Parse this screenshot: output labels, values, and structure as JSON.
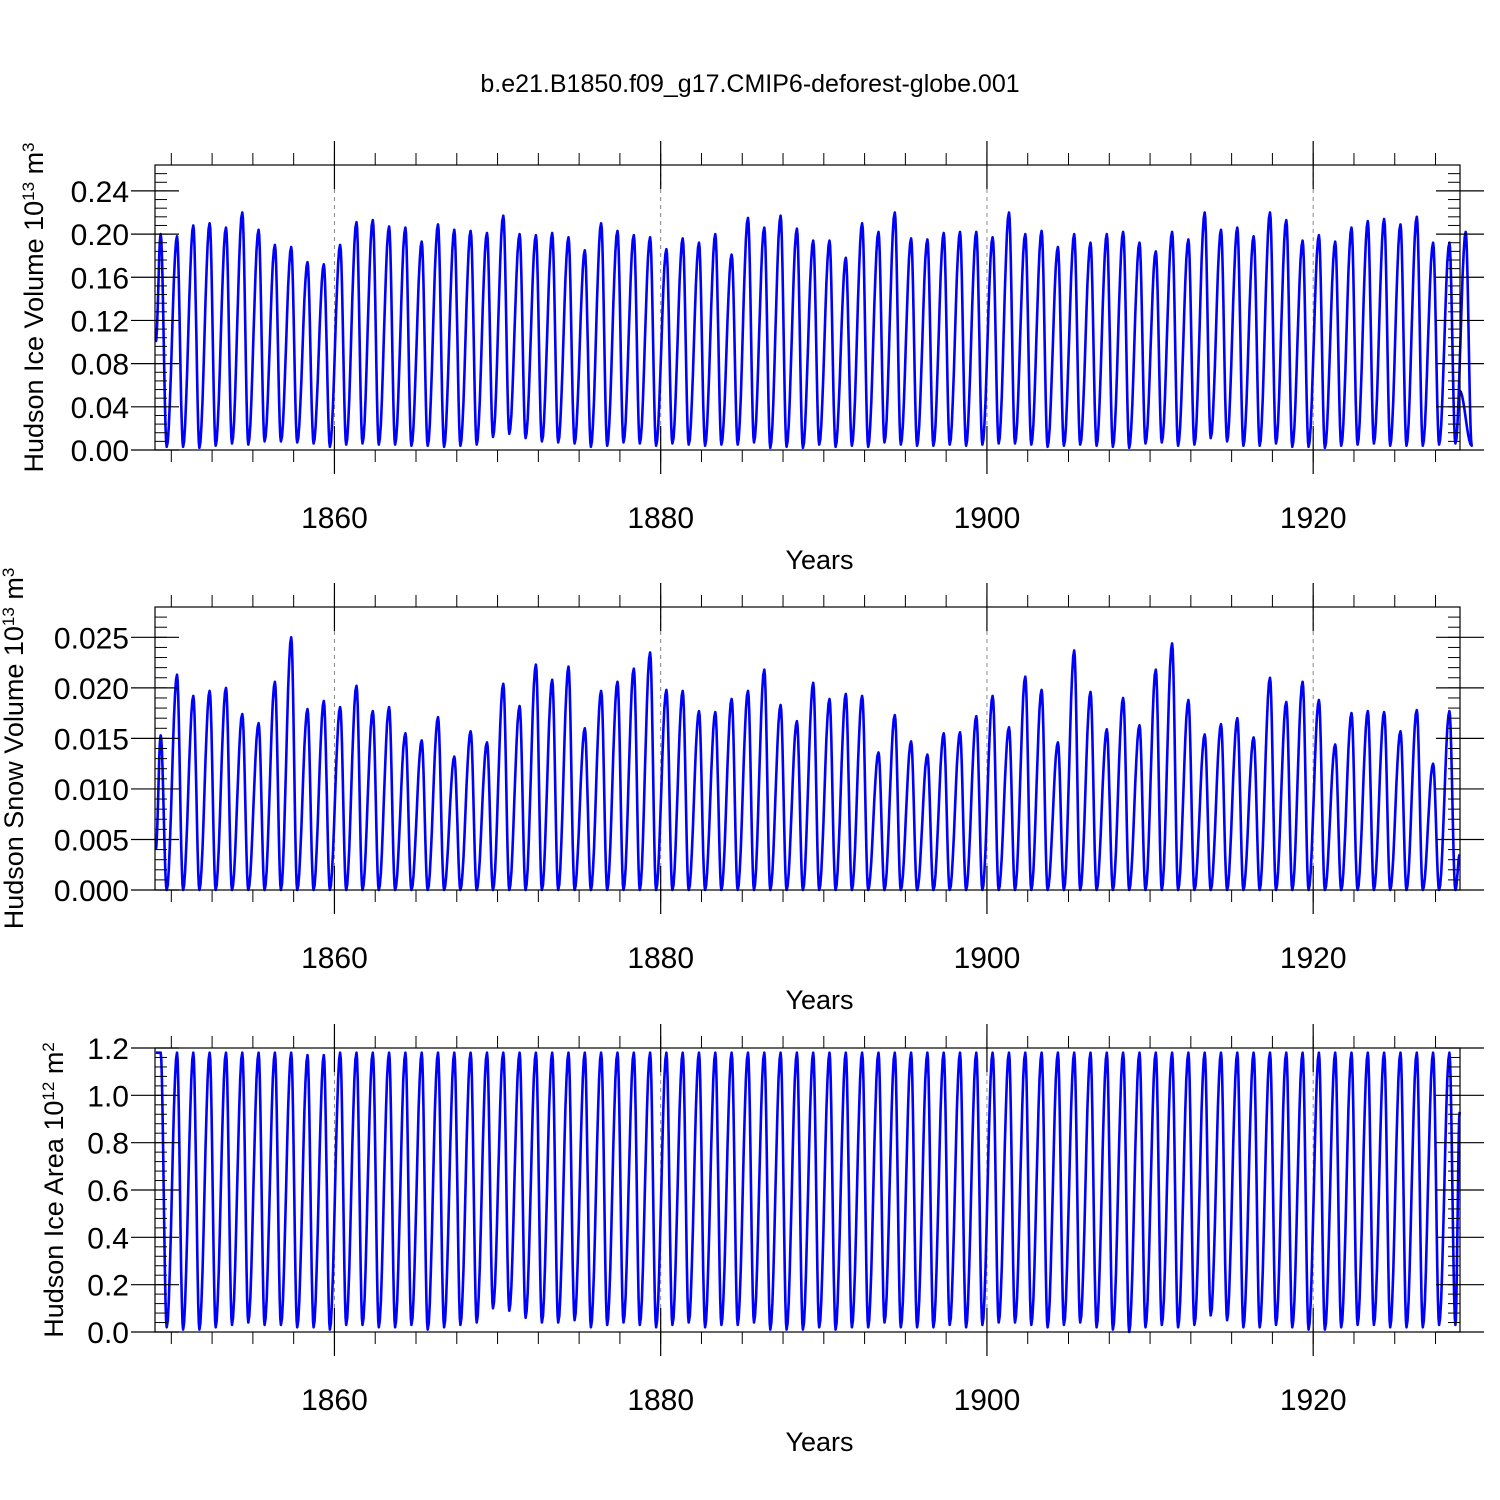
{
  "figure": {
    "title": "b.e21.B1850.f09_g17.CMIP6-deforest-globe.001"
  },
  "chart_data": [
    {
      "id": "ice-volume",
      "type": "line",
      "title": "",
      "xlabel": "Years",
      "ylabel_main": "Hudson Ice Volume 10",
      "ylabel_sup": "13",
      "ylabel_unit": " m",
      "ylabel_unit_sup": "3",
      "xlim": [
        1849,
        1929
      ],
      "ylim": [
        0,
        0.264
      ],
      "y_ticks": [
        "0.00",
        "0.04",
        "0.08",
        "0.12",
        "0.16",
        "0.20",
        "0.24"
      ],
      "y_tick_values": [
        0,
        0.04,
        0.08,
        0.12,
        0.16,
        0.2,
        0.24
      ],
      "y_minor_step": 0.008,
      "x_ticks": [
        "1860",
        "1880",
        "1900",
        "1920"
      ],
      "x_tick_values": [
        1860,
        1880,
        1900,
        1920
      ],
      "x_minor_step": 2.5,
      "reference_lines": [
        1860,
        1880,
        1900,
        1920
      ],
      "series_color": "#0000ff",
      "start_value": 0.1,
      "end_value": 0.055,
      "series": [
        {
          "name": "Hudson Ice Volume",
          "annual_peaks": [
            0.2,
            0.198,
            0.208,
            0.21,
            0.206,
            0.22,
            0.204,
            0.19,
            0.188,
            0.174,
            0.172,
            0.19,
            0.211,
            0.213,
            0.207,
            0.206,
            0.193,
            0.209,
            0.204,
            0.203,
            0.201,
            0.217,
            0.2,
            0.199,
            0.201,
            0.197,
            0.185,
            0.21,
            0.203,
            0.199,
            0.197,
            0.186,
            0.196,
            0.192,
            0.2,
            0.181,
            0.215,
            0.206,
            0.217,
            0.205,
            0.194,
            0.194,
            0.178,
            0.21,
            0.202,
            0.22,
            0.196,
            0.195,
            0.201,
            0.202,
            0.202,
            0.197,
            0.22,
            0.2,
            0.203,
            0.188,
            0.2,
            0.192,
            0.2,
            0.202,
            0.192,
            0.184,
            0.202,
            0.195,
            0.22,
            0.204,
            0.206,
            0.198,
            0.22,
            0.213,
            0.194,
            0.199,
            0.193,
            0.206,
            0.212,
            0.214,
            0.209,
            0.216,
            0.192,
            0.192,
            0.202
          ],
          "annual_minima": [
            0.003,
            0.003,
            0.002,
            0.004,
            0.006,
            0.005,
            0.008,
            0.008,
            0.007,
            0.006,
            0.003,
            0.005,
            0.006,
            0.005,
            0.005,
            0.004,
            0.004,
            0.003,
            0.004,
            0.005,
            0.012,
            0.015,
            0.011,
            0.008,
            0.007,
            0.006,
            0.003,
            0.004,
            0.007,
            0.006,
            0.004,
            0.006,
            0.005,
            0.004,
            0.005,
            0.005,
            0.007,
            0.002,
            0.003,
            0.002,
            0.005,
            0.003,
            0.004,
            0.003,
            0.007,
            0.005,
            0.004,
            0.004,
            0.005,
            0.004,
            0.005,
            0.006,
            0.006,
            0.005,
            0.003,
            0.004,
            0.005,
            0.004,
            0.003,
            0.002,
            0.006,
            0.007,
            0.004,
            0.005,
            0.011,
            0.008,
            0.004,
            0.004,
            0.006,
            0.003,
            0.003,
            0.002,
            0.004,
            0.005,
            0.006,
            0.004,
            0.004,
            0.004,
            0.005,
            0.006,
            0.004
          ]
        }
      ]
    },
    {
      "id": "snow-volume",
      "type": "line",
      "title": "",
      "xlabel": "Years",
      "ylabel_main": "Hudson Snow Volume 10",
      "ylabel_sup": "13",
      "ylabel_unit": " m",
      "ylabel_unit_sup": "3",
      "xlim": [
        1849,
        1929
      ],
      "ylim": [
        0,
        0.028
      ],
      "y_ticks": [
        "0.000",
        "0.005",
        "0.010",
        "0.015",
        "0.020",
        "0.025"
      ],
      "y_tick_values": [
        0,
        0.005,
        0.01,
        0.015,
        0.02,
        0.025
      ],
      "y_minor_step": 0.001,
      "x_ticks": [
        "1860",
        "1880",
        "1900",
        "1920"
      ],
      "x_tick_values": [
        1860,
        1880,
        1900,
        1920
      ],
      "x_minor_step": 2.5,
      "reference_lines": [
        1860,
        1880,
        1900,
        1920
      ],
      "series_color": "#0000ff",
      "start_value": 0.004,
      "end_value": 0.0035,
      "series": [
        {
          "name": "Hudson Snow Volume",
          "annual_peaks": [
            0.0153,
            0.0213,
            0.0192,
            0.0197,
            0.02,
            0.0174,
            0.0165,
            0.0206,
            0.025,
            0.0179,
            0.0187,
            0.0181,
            0.0202,
            0.0177,
            0.0181,
            0.0155,
            0.0148,
            0.0171,
            0.0132,
            0.0157,
            0.0146,
            0.0204,
            0.0182,
            0.0223,
            0.0208,
            0.0221,
            0.016,
            0.0197,
            0.0206,
            0.0219,
            0.0235,
            0.0198,
            0.0197,
            0.0177,
            0.0176,
            0.0189,
            0.0197,
            0.0218,
            0.0183,
            0.0167,
            0.0205,
            0.0189,
            0.0194,
            0.0192,
            0.0136,
            0.0173,
            0.0147,
            0.0134,
            0.0155,
            0.0156,
            0.0172,
            0.0192,
            0.0161,
            0.0211,
            0.0198,
            0.0146,
            0.0237,
            0.0196,
            0.0159,
            0.019,
            0.0163,
            0.0218,
            0.0244,
            0.0188,
            0.0154,
            0.0164,
            0.017,
            0.0151,
            0.021,
            0.0186,
            0.0206,
            0.0188,
            0.0144,
            0.0175,
            0.0177,
            0.0176,
            0.0157,
            0.0178,
            0.0125,
            0.0177
          ],
          "annual_minima": [
            0.0,
            0.0,
            0.0,
            0.0,
            0.0,
            0.0,
            0.0,
            0.0,
            0.0,
            0.0,
            0.0,
            0.0,
            0.0,
            0.0,
            0.0,
            0.0,
            0.0,
            0.0,
            0.0,
            0.0,
            0.0,
            0.0,
            0.0,
            0.0,
            0.0,
            0.0,
            0.0,
            0.0,
            0.0,
            0.0,
            0.0,
            0.0,
            0.0,
            0.0,
            0.0,
            0.0,
            0.0,
            0.0,
            0.0,
            0.0,
            0.0,
            0.0,
            0.0,
            0.0,
            0.0,
            0.0,
            0.0,
            0.0,
            0.0,
            0.0,
            0.0,
            0.0,
            0.0,
            0.0,
            0.0,
            0.0,
            0.0,
            0.0,
            0.0,
            0.0,
            0.0,
            0.0,
            0.0,
            0.0,
            0.0,
            0.0,
            0.0,
            0.0,
            0.0,
            0.0,
            0.0,
            0.0,
            0.0,
            0.0,
            0.0,
            0.0,
            0.0,
            0.0,
            0.0,
            0.0
          ]
        }
      ]
    },
    {
      "id": "ice-area",
      "type": "line",
      "title": "",
      "xlabel": "Years",
      "ylabel_main": "Hudson Ice Area 10",
      "ylabel_sup": "12",
      "ylabel_unit": " m",
      "ylabel_unit_sup": "2",
      "xlim": [
        1849,
        1929
      ],
      "ylim": [
        0,
        1.2
      ],
      "y_ticks": [
        "0.0",
        "0.2",
        "0.4",
        "0.6",
        "0.8",
        "1.0",
        "1.2"
      ],
      "y_tick_values": [
        0,
        0.2,
        0.4,
        0.6,
        0.8,
        1.0,
        1.2
      ],
      "y_minor_step": 0.04,
      "x_ticks": [
        "1860",
        "1880",
        "1900",
        "1920"
      ],
      "x_tick_values": [
        1860,
        1880,
        1900,
        1920
      ],
      "x_minor_step": 2.5,
      "reference_lines": [
        1860,
        1880,
        1900,
        1920
      ],
      "series_color": "#0000ff",
      "start_value": 1.18,
      "end_value": 0.93,
      "series": [
        {
          "name": "Hudson Ice Area",
          "annual_peaks": [
            1.18,
            1.18,
            1.18,
            1.18,
            1.18,
            1.18,
            1.18,
            1.18,
            1.18,
            1.17,
            1.17,
            1.18,
            1.18,
            1.18,
            1.18,
            1.18,
            1.18,
            1.18,
            1.18,
            1.18,
            1.18,
            1.18,
            1.18,
            1.18,
            1.18,
            1.18,
            1.18,
            1.18,
            1.18,
            1.18,
            1.18,
            1.18,
            1.18,
            1.18,
            1.18,
            1.18,
            1.18,
            1.18,
            1.18,
            1.18,
            1.18,
            1.18,
            1.18,
            1.18,
            1.18,
            1.18,
            1.18,
            1.18,
            1.18,
            1.18,
            1.18,
            1.18,
            1.18,
            1.18,
            1.18,
            1.18,
            1.18,
            1.18,
            1.18,
            1.18,
            1.18,
            1.18,
            1.18,
            1.18,
            1.18,
            1.18,
            1.18,
            1.18,
            1.18,
            1.18,
            1.18,
            1.18,
            1.18,
            1.18,
            1.18,
            1.18,
            1.18,
            1.18,
            1.18,
            1.18
          ],
          "annual_minima": [
            0.02,
            0.01,
            0.01,
            0.02,
            0.03,
            0.04,
            0.03,
            0.03,
            0.02,
            0.02,
            0.01,
            0.03,
            0.03,
            0.02,
            0.02,
            0.03,
            0.01,
            0.02,
            0.03,
            0.04,
            0.1,
            0.09,
            0.06,
            0.04,
            0.04,
            0.05,
            0.02,
            0.03,
            0.04,
            0.03,
            0.02,
            0.03,
            0.04,
            0.02,
            0.03,
            0.03,
            0.04,
            0.01,
            0.01,
            0.01,
            0.02,
            0.01,
            0.02,
            0.02,
            0.04,
            0.02,
            0.02,
            0.02,
            0.03,
            0.02,
            0.03,
            0.04,
            0.04,
            0.03,
            0.02,
            0.03,
            0.04,
            0.02,
            0.01,
            0.0,
            0.02,
            0.03,
            0.02,
            0.03,
            0.07,
            0.05,
            0.02,
            0.02,
            0.03,
            0.02,
            0.01,
            0.01,
            0.02,
            0.03,
            0.03,
            0.02,
            0.02,
            0.02,
            0.03,
            0.03
          ]
        }
      ]
    }
  ]
}
